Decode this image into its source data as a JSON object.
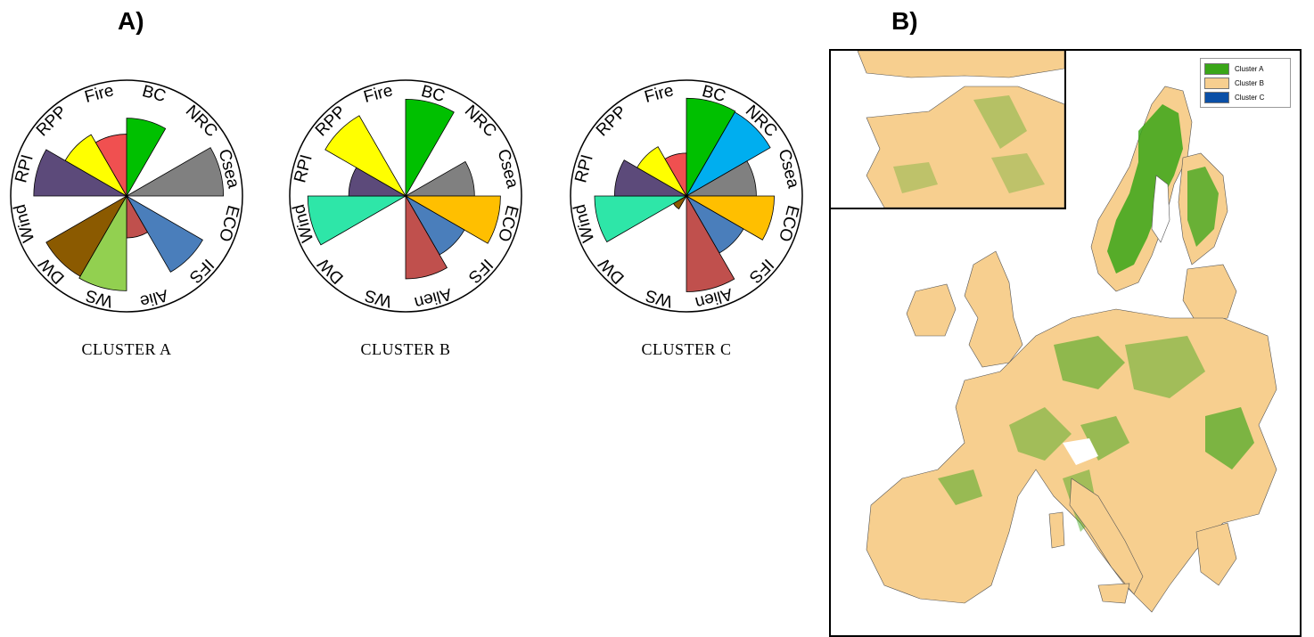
{
  "panel_labels": {
    "a": "A)",
    "b": "B)"
  },
  "chart_data": [
    {
      "type": "rose",
      "caption": "CLUSTER A",
      "categories": [
        "BC",
        "NRC",
        "Csea",
        "ECO",
        "IFS",
        "Alie",
        "WS",
        "DW",
        "Wind",
        "RPI",
        "RPP",
        "Fire"
      ],
      "values": [
        0.78,
        0.0,
        0.97,
        0.0,
        0.88,
        0.42,
        0.95,
        0.93,
        0.0,
        0.93,
        0.71,
        0.62
      ],
      "colors": [
        "#00c000",
        "#00aeef",
        "#808080",
        "#ffbf00",
        "#4a7ebb",
        "#c0504d",
        "#92d050",
        "#8b5a00",
        "#2ee6a8",
        "#5c4a7a",
        "#ffff00",
        "#f05050"
      ]
    },
    {
      "type": "rose",
      "caption": "CLUSTER B",
      "categories": [
        "BC",
        "NRC",
        "Csea",
        "ECO",
        "IFS",
        "Alien",
        "WS",
        "DW",
        "Wind",
        "RPI",
        "RPP",
        "Fire"
      ],
      "values": [
        0.97,
        0.0,
        0.69,
        0.95,
        0.68,
        0.83,
        0.0,
        0.0,
        0.98,
        0.57,
        0.93,
        0.0
      ],
      "colors": [
        "#00c000",
        "#00aeef",
        "#808080",
        "#ffbf00",
        "#4a7ebb",
        "#c0504d",
        "#92d050",
        "#8b5a00",
        "#2ee6a8",
        "#5c4a7a",
        "#ffff00",
        "#f05050"
      ]
    },
    {
      "type": "rose",
      "caption": "CLUSTER C",
      "categories": [
        "BC",
        "NRC",
        "Csea",
        "ECO",
        "IFS",
        "Alien",
        "WS",
        "DW",
        "Wind",
        "RPI",
        "RPP",
        "Fire"
      ],
      "values": [
        0.98,
        0.97,
        0.7,
        0.88,
        0.66,
        0.96,
        0.0,
        0.15,
        0.92,
        0.72,
        0.57,
        0.43
      ],
      "colors": [
        "#00c000",
        "#00aeef",
        "#808080",
        "#ffbf00",
        "#4a7ebb",
        "#c0504d",
        "#92d050",
        "#8b5a00",
        "#2ee6a8",
        "#5c4a7a",
        "#ffff00",
        "#f05050"
      ]
    }
  ],
  "map": {
    "legend": [
      {
        "label": "Cluster A",
        "color": "#3aa618"
      },
      {
        "label": "Cluster B",
        "color": "#f7cf8f"
      },
      {
        "label": "Cluster C",
        "color": "#0a4fa6"
      }
    ]
  }
}
